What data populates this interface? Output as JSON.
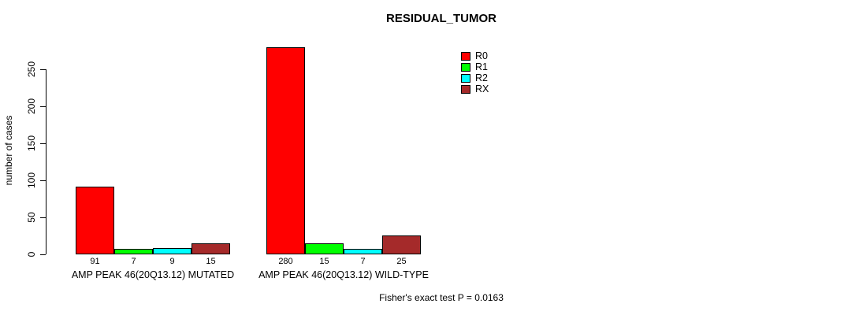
{
  "chart_data": {
    "type": "bar",
    "title": "RESIDUAL_TUMOR",
    "xlabel": "",
    "ylabel": "number of cases",
    "ylim": [
      0,
      250
    ],
    "yticks": [
      0,
      50,
      100,
      150,
      200,
      250
    ],
    "grid": false,
    "legend_position": "top-right",
    "categories": [
      "AMP PEAK 46(20Q13.12) MUTATED",
      "AMP PEAK 46(20Q13.12) WILD-TYPE"
    ],
    "series": [
      {
        "name": "R0",
        "color": "#FF0000",
        "values": [
          91,
          280
        ]
      },
      {
        "name": "R1",
        "color": "#00FF00",
        "values": [
          7,
          15
        ]
      },
      {
        "name": "R2",
        "color": "#00FFFF",
        "values": [
          9,
          7
        ]
      },
      {
        "name": "RX",
        "color": "#A52A2A",
        "values": [
          15,
          25
        ]
      }
    ],
    "bar_value_labels": [
      [
        "91",
        "7",
        "9",
        "15"
      ],
      [
        "280",
        "15",
        "7",
        "25"
      ]
    ],
    "annotation": "Fisher's exact test P = 0.0163"
  }
}
